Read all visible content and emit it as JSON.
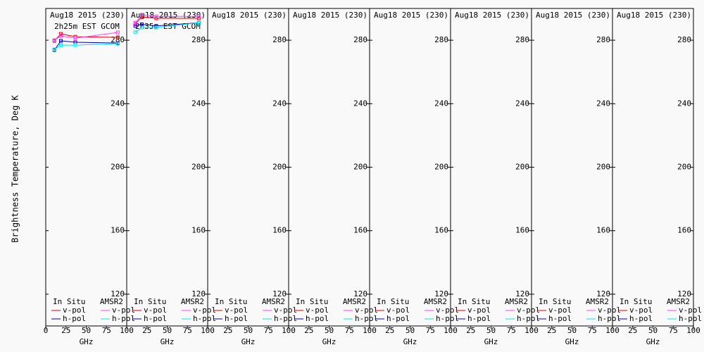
{
  "chart_data": [
    {
      "type": "line",
      "title": "Aug18 2015 (230)",
      "subtitle": "2h25m EST GCOM",
      "ylabel": "Brightness Temperature, Deg K",
      "xlabel": "GHz",
      "legend_titles": [
        "In Situ",
        "AMSR2"
      ],
      "x": [
        10.65,
        18.7,
        36.5,
        89
      ],
      "series": [
        {
          "name": "v-pol",
          "color": "#e00000",
          "values": [
            279.6,
            284,
            282.2,
            281.8
          ]
        },
        {
          "name": "h-pol",
          "color": "#0000b0",
          "values": [
            273.8,
            279.6,
            278.7,
            278.2
          ]
        },
        {
          "name": "v-pol",
          "color": "#ff40ff",
          "values": [
            280,
            282.7,
            281.3,
            284.9
          ]
        },
        {
          "name": "h-pol",
          "color": "#00e8e8",
          "values": [
            274.2,
            276.9,
            276.9,
            277.8
          ]
        }
      ],
      "xlim": [
        0,
        100
      ],
      "xticks": [
        0,
        25,
        50,
        75,
        100
      ],
      "ylim": [
        100,
        300
      ],
      "yticks": [
        120,
        160,
        200,
        240,
        280
      ]
    },
    {
      "type": "line",
      "title": "Aug18 2015 (230)",
      "subtitle": "2h35m EST GCOM",
      "xlabel": "GHz",
      "legend_titles": [
        "In Situ",
        "AMSR2"
      ],
      "x": [
        10.65,
        18.7,
        36.5,
        89
      ],
      "series": [
        {
          "name": "v-pol",
          "color": "#e00000",
          "values": [
            290.2,
            294.7,
            293.8,
            293.8
          ]
        },
        {
          "name": "h-pol",
          "color": "#0000b0",
          "values": [
            289,
            290,
            289,
            291
          ]
        },
        {
          "name": "v-pol",
          "color": "#ff40ff",
          "values": [
            291,
            296,
            295,
            295
          ]
        },
        {
          "name": "h-pol",
          "color": "#00e8e8",
          "values": [
            285,
            288,
            288,
            291
          ]
        }
      ],
      "xlim": [
        0,
        100
      ],
      "xticks": [
        25,
        50,
        75,
        100
      ],
      "ylim": [
        100,
        300
      ],
      "yticks": [
        120,
        160,
        200,
        240,
        280
      ]
    },
    {
      "type": "line",
      "title": "Aug18 2015 (230)",
      "xlabel": "GHz",
      "legend_titles": [
        "In Situ",
        "AMSR2"
      ],
      "x": [],
      "series": [
        {
          "name": "v-pol",
          "color": "#e00000",
          "values": []
        },
        {
          "name": "h-pol",
          "color": "#0000b0",
          "values": []
        },
        {
          "name": "v-pol",
          "color": "#ff40ff",
          "values": []
        },
        {
          "name": "h-pol",
          "color": "#00e8e8",
          "values": []
        }
      ],
      "xlim": [
        0,
        100
      ],
      "xticks": [
        25,
        50,
        75,
        100
      ],
      "ylim": [
        100,
        300
      ],
      "yticks": [
        120,
        160,
        200,
        240,
        280
      ]
    },
    {
      "type": "line",
      "title": "Aug18 2015 (230)",
      "xlabel": "GHz",
      "legend_titles": [
        "In Situ",
        "AMSR2"
      ],
      "x": [],
      "series": [
        {
          "name": "v-pol",
          "color": "#e00000",
          "values": []
        },
        {
          "name": "h-pol",
          "color": "#0000b0",
          "values": []
        },
        {
          "name": "v-pol",
          "color": "#ff40ff",
          "values": []
        },
        {
          "name": "h-pol",
          "color": "#00e8e8",
          "values": []
        }
      ],
      "xlim": [
        0,
        100
      ],
      "xticks": [
        25,
        50,
        75,
        100
      ],
      "ylim": [
        100,
        300
      ],
      "yticks": [
        120,
        160,
        200,
        240,
        280
      ]
    },
    {
      "type": "line",
      "title": "Aug18 2015 (230)",
      "xlabel": "GHz",
      "legend_titles": [
        "In Situ",
        "AMSR2"
      ],
      "x": [],
      "series": [
        {
          "name": "v-pol",
          "color": "#e00000",
          "values": []
        },
        {
          "name": "h-pol",
          "color": "#0000b0",
          "values": []
        },
        {
          "name": "v-pol",
          "color": "#ff40ff",
          "values": []
        },
        {
          "name": "h-pol",
          "color": "#00e8e8",
          "values": []
        }
      ],
      "xlim": [
        0,
        100
      ],
      "xticks": [
        25,
        50,
        75,
        100
      ],
      "ylim": [
        100,
        300
      ],
      "yticks": [
        120,
        160,
        200,
        240,
        280
      ]
    },
    {
      "type": "line",
      "title": "Aug18 2015 (230)",
      "xlabel": "GHz",
      "legend_titles": [
        "In Situ",
        "AMSR2"
      ],
      "x": [],
      "series": [
        {
          "name": "v-pol",
          "color": "#e00000",
          "values": []
        },
        {
          "name": "h-pol",
          "color": "#0000b0",
          "values": []
        },
        {
          "name": "v-pol",
          "color": "#ff40ff",
          "values": []
        },
        {
          "name": "h-pol",
          "color": "#00e8e8",
          "values": []
        }
      ],
      "xlim": [
        0,
        100
      ],
      "xticks": [
        25,
        50,
        75,
        100
      ],
      "ylim": [
        100,
        300
      ],
      "yticks": [
        120,
        160,
        200,
        240,
        280
      ]
    },
    {
      "type": "line",
      "title": "Aug18 2015 (230)",
      "xlabel": "GHz",
      "legend_titles": [
        "In Situ",
        "AMSR2"
      ],
      "x": [],
      "series": [
        {
          "name": "v-pol",
          "color": "#e00000",
          "values": []
        },
        {
          "name": "h-pol",
          "color": "#0000b0",
          "values": []
        },
        {
          "name": "v-pol",
          "color": "#ff40ff",
          "values": []
        },
        {
          "name": "h-pol",
          "color": "#00e8e8",
          "values": []
        }
      ],
      "xlim": [
        0,
        100
      ],
      "xticks": [
        25,
        50,
        75,
        100
      ],
      "ylim": [
        100,
        300
      ],
      "yticks": [
        120,
        160,
        200,
        240,
        280
      ]
    },
    {
      "type": "line",
      "title": "Aug18 2015 (230)",
      "xlabel": "GHz",
      "legend_titles": [
        "In Situ",
        "AMSR2"
      ],
      "x": [],
      "series": [
        {
          "name": "v-pol",
          "color": "#e00000",
          "values": []
        },
        {
          "name": "h-pol",
          "color": "#0000b0",
          "values": []
        },
        {
          "name": "v-pol",
          "color": "#ff40ff",
          "values": []
        },
        {
          "name": "h-pol",
          "color": "#00e8e8",
          "values": []
        }
      ],
      "xlim": [
        0,
        100
      ],
      "xticks": [
        25,
        50,
        75,
        100
      ],
      "ylim": [
        100,
        300
      ],
      "yticks": [
        120,
        160,
        200,
        240,
        280
      ]
    }
  ]
}
